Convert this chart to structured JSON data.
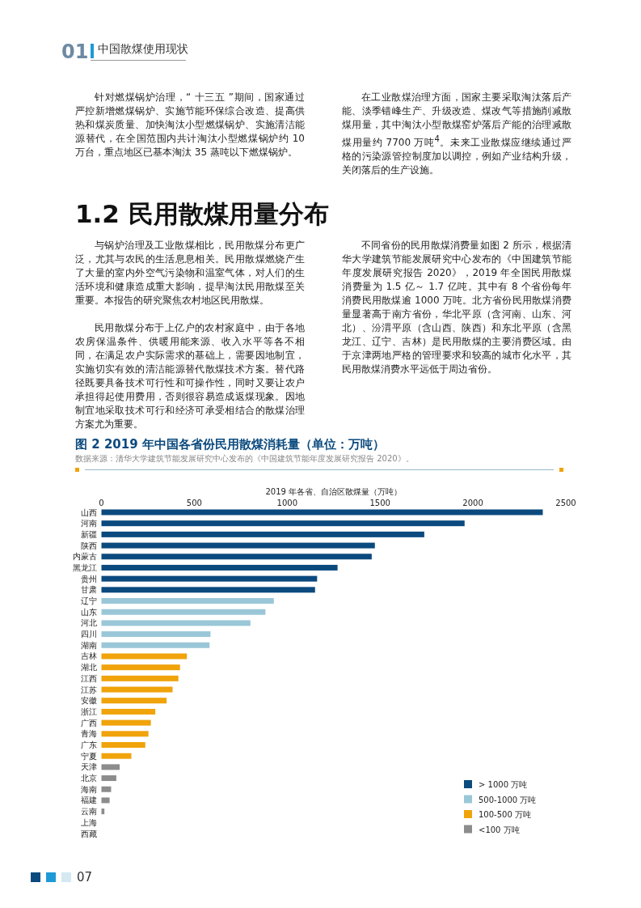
{
  "chart_data": {
    "type": "bar",
    "orientation": "horizontal",
    "title": "图 2  2019 年中国各省份民用散煤消耗量（单位：万吨）",
    "subtitle": "数据来源：清华大学建筑节能发展研究中心发布的《中国建筑节能年度发展研究报告 2020》。",
    "xlabel": "2019 年各省、自治区散煤量（万吨）",
    "categories": [
      "山西",
      "河南",
      "新疆",
      "陕西",
      "内蒙古",
      "黑龙江",
      "贵州",
      "甘肃",
      "辽宁",
      "山东",
      "河北",
      "四川",
      "湖南",
      "吉林",
      "湖北",
      "江西",
      "江苏",
      "安徽",
      "浙江",
      "广西",
      "青海",
      "广东",
      "宁夏",
      "天津",
      "北京",
      "海南",
      "福建",
      "云南",
      "上海",
      "西藏"
    ],
    "series": [
      {
        "name": "> 1000 万吨",
        "color": "#0b4a7e",
        "values": [
          2376,
          1955,
          1738,
          1472,
          1455,
          1271,
          1161,
          1150,
          null,
          null,
          null,
          null,
          null,
          null,
          null,
          null,
          null,
          null,
          null,
          null,
          null,
          null,
          null,
          null,
          null,
          null,
          null,
          null,
          null,
          null
        ]
      },
      {
        "name": "500-1000 万吨",
        "color": "#9ac7d8",
        "values": [
          null,
          null,
          null,
          null,
          null,
          null,
          null,
          null,
          928,
          883,
          802,
          587,
          582,
          null,
          null,
          null,
          null,
          null,
          null,
          null,
          null,
          null,
          null,
          null,
          null,
          null,
          null,
          null,
          null,
          null
        ]
      },
      {
        "name": "100-500 万吨",
        "color": "#f0a30a",
        "values": [
          null,
          null,
          null,
          null,
          null,
          null,
          null,
          null,
          null,
          null,
          null,
          null,
          null,
          460,
          423,
          414,
          383,
          351,
          290,
          266,
          253,
          236,
          161,
          null,
          null,
          null,
          null,
          null,
          null,
          null
        ]
      },
      {
        "name": "<100 万吨",
        "color": "#8c8c8c",
        "values": [
          null,
          null,
          null,
          null,
          null,
          null,
          null,
          null,
          null,
          null,
          null,
          null,
          null,
          null,
          null,
          null,
          null,
          null,
          null,
          null,
          null,
          null,
          null,
          98,
          80,
          52,
          44,
          16,
          0,
          0
        ]
      }
    ],
    "xlim": [
      0,
      2500
    ],
    "xticks": [
      0,
      500,
      1000,
      1500,
      2000,
      2500
    ],
    "legend": "bottom right",
    "annotations": [
      "01",
      "中国散煤使用现状",
      "针对燃煤锅炉治理，“ 十三五 ”期间，国家通过严控新增燃煤锅炉、实施节能环保综合改造、提高供热和煤炭质量、加快淘汰小型燃煤锅炉、实施清洁能源替代，在全国范围内共计淘汰小型燃煤锅炉约 10 万台，重点地区已基本淘汰 35 蒸吨以下燃煤锅炉。",
      "在工业散煤治理方面，国家主要采取淘汰落后产能、淡季错峰生产、升级改造、煤改气等措施削减散煤用量，其中淘汰小型散煤窑炉落后产能的治理减散煤用量约 7700 万吨$^{4}$。未来工业散煤应继续通过严格的污染源管控制度加以调控，例如产业结构升级，关闭落后的生产设施。",
      "1.2 民用散煤用量分布",
      "与锅炉治理及工业散煤相比，民用散煤分布更广泛，尤其与农民的生活息息相关。民用散煤燃烧产生了大量的室内外空气污染物和温室气体，对人们的生活环境和健康造成重大影响，提早淘汰民用散煤至关重要。本报告的研究聚焦农村地区民用散煤。",
      "民用散煤分布于上亿户的农村家庭中，由于各地农房保温条件、供暖用能来源、收入水平等各不相同，在满足农户实际需求的基础上，需要因地制宜，实施切实有效的清洁能源替代散煤技术方案。替代路径既要具备技术可行性和可操作性，同时又要让农户承担得起使用费用，否则很容易造成返煤现象。因地制宜地采取技术可行和经济可承受相结合的散煤治理方案尤为重要。",
      "不同省份的民用散煤消费量如图 2 所示，根据清华大学建筑节能发展研究中心发布的《中国建筑节能年度发展研究报告 2020》，2019 年全国民用散煤消费量为 1.5 亿～ 1.7 亿吨。其中有 8 个省份每年消费民用散煤逾 1000 万吨。北方省份民用散煤消费量显著高于南方省份，华北平原（含河南、山东、河北）、汾渭平原（含山西、陕西）和东北平原（含黑龙江、辽宁、吉林）是民用散煤的主要消费区域。由于京津两地严格的管理要求和较高的城市化水平，其民用散煤消费水平远低于周边省份。",
      "07"
    ]
  }
}
